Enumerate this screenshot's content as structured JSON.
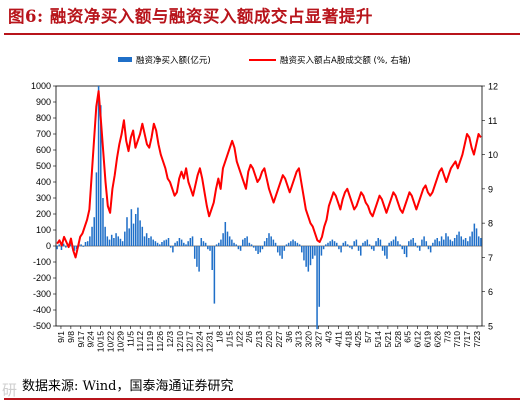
{
  "figure": {
    "title": "图6:  融资净买入额与融资买入额成交占显著提升",
    "source": "数据来源:  Wind，国泰海通证券研究",
    "watermark": "研"
  },
  "chart_data": {
    "type": "bar+line",
    "title": "",
    "xlabel": "",
    "ylabel_left": "",
    "ylabel_right": "",
    "left_axis": {
      "min": -500,
      "max": 1000,
      "step": 100,
      "ticks": [
        "-500",
        "-400",
        "-300",
        "-200",
        "-100",
        "0",
        "100",
        "200",
        "300",
        "400",
        "500",
        "600",
        "700",
        "800",
        "900",
        "1000"
      ]
    },
    "right_axis": {
      "min": 5,
      "max": 12,
      "step": 1,
      "ticks": [
        "5",
        "6",
        "7",
        "8",
        "9",
        "10",
        "11",
        "12"
      ]
    },
    "x_tick_labels": [
      "9/1",
      "9/8",
      "9/17",
      "9/24",
      "10/15",
      "10/22",
      "10/29",
      "11/5",
      "11/12",
      "11/19",
      "11/26",
      "12/3",
      "12/10",
      "12/17",
      "12/24",
      "12/31",
      "1/8",
      "1/15",
      "1/22",
      "2/6",
      "2/13",
      "2/20",
      "2/27",
      "3/6",
      "3/13",
      "3/20",
      "3/27",
      "4/3",
      "4/11",
      "4/18",
      "4/25",
      "5/7",
      "5/14",
      "5/21",
      "5/28",
      "6/5",
      "6/12",
      "6/19",
      "6/26",
      "7/3",
      "7/10",
      "7/17",
      "7/23"
    ],
    "x_tick_interval": 5,
    "legend": {
      "placement": "top",
      "entries": [
        {
          "name": "融资净买入额(亿元)",
          "type": "bar",
          "color": "#1f6fc8"
        },
        {
          "name": "融资买入额占A股成交额 (%, 右轴)",
          "type": "line",
          "color": "#ff0000"
        }
      ]
    },
    "series": [
      {
        "name": "融资净买入额(亿元)",
        "axis": "left",
        "type": "bar",
        "color": "#1f6fc8",
        "values": [
          -20,
          10,
          -25,
          15,
          -10,
          5,
          20,
          -15,
          -30,
          -20,
          15,
          10,
          -5,
          25,
          30,
          60,
          120,
          180,
          460,
          1000,
          880,
          300,
          120,
          60,
          40,
          70,
          50,
          80,
          60,
          45,
          30,
          90,
          180,
          110,
          230,
          140,
          200,
          240,
          160,
          120,
          60,
          80,
          50,
          60,
          40,
          30,
          20,
          10,
          25,
          35,
          40,
          50,
          -10,
          -40,
          20,
          30,
          50,
          40,
          20,
          10,
          30,
          50,
          60,
          -80,
          -130,
          -160,
          50,
          30,
          20,
          -20,
          -30,
          -150,
          -360,
          10,
          20,
          40,
          80,
          150,
          90,
          60,
          40,
          20,
          10,
          -20,
          -30,
          40,
          50,
          60,
          20,
          10,
          -10,
          -30,
          -50,
          -40,
          -20,
          30,
          50,
          80,
          60,
          40,
          20,
          -40,
          -60,
          -80,
          -30,
          10,
          20,
          30,
          40,
          30,
          20,
          10,
          -40,
          -90,
          -130,
          -160,
          -120,
          -80,
          -60,
          -520,
          -380,
          -60,
          -20,
          10,
          20,
          30,
          40,
          30,
          20,
          -20,
          -40,
          20,
          30,
          10,
          -10,
          -20,
          30,
          40,
          -30,
          -60,
          20,
          30,
          40,
          10,
          -20,
          -30,
          30,
          50,
          40,
          -30,
          -60,
          -80,
          20,
          30,
          40,
          60,
          30,
          10,
          -20,
          -50,
          -70,
          30,
          40,
          50,
          20,
          -10,
          -30,
          40,
          60,
          30,
          -20,
          -40,
          20,
          40,
          50,
          30,
          60,
          40,
          80,
          60,
          40,
          30,
          50,
          70,
          90,
          60,
          40,
          50,
          30,
          60,
          90,
          140,
          110,
          60,
          50
        ]
      },
      {
        "name": "融资买入额占A股成交额 (%, 右轴)",
        "axis": "right",
        "type": "line",
        "color": "#ff0000",
        "values": [
          7.4,
          7.5,
          7.35,
          7.6,
          7.45,
          7.3,
          7.55,
          7.2,
          7.0,
          7.3,
          7.6,
          7.7,
          7.9,
          8.1,
          8.4,
          9.4,
          10.4,
          11.4,
          11.85,
          11.0,
          10.1,
          9.2,
          8.5,
          8.3,
          9.0,
          9.4,
          9.9,
          10.3,
          10.6,
          11.0,
          10.4,
          10.1,
          10.5,
          10.7,
          10.2,
          10.4,
          10.6,
          10.9,
          10.6,
          10.3,
          10.2,
          10.5,
          10.9,
          10.7,
          10.3,
          10.0,
          9.8,
          9.6,
          9.3,
          9.2,
          9.0,
          8.8,
          8.9,
          9.3,
          9.5,
          9.3,
          9.6,
          9.2,
          9.0,
          8.8,
          9.1,
          9.4,
          9.6,
          9.3,
          8.9,
          8.5,
          8.2,
          8.4,
          8.6,
          9.0,
          9.3,
          9.0,
          9.6,
          9.8,
          10.0,
          10.2,
          10.4,
          10.2,
          9.8,
          9.6,
          9.4,
          9.2,
          9.0,
          9.5,
          9.7,
          9.6,
          9.4,
          9.2,
          9.3,
          9.5,
          9.6,
          9.3,
          9.0,
          8.8,
          8.6,
          8.8,
          9.0,
          9.2,
          9.4,
          9.3,
          9.1,
          8.9,
          9.1,
          9.3,
          9.5,
          9.6,
          9.2,
          8.8,
          8.4,
          8.2,
          8.0,
          7.9,
          7.7,
          7.5,
          7.45,
          7.6,
          7.9,
          8.1,
          8.5,
          8.7,
          8.9,
          8.8,
          8.6,
          8.4,
          8.7,
          8.9,
          9.0,
          8.8,
          8.6,
          8.4,
          8.5,
          8.7,
          8.9,
          8.8,
          8.6,
          8.5,
          8.3,
          8.2,
          8.4,
          8.6,
          8.8,
          8.7,
          8.5,
          8.3,
          8.5,
          8.7,
          8.9,
          8.8,
          8.6,
          8.4,
          8.3,
          8.5,
          8.7,
          8.9,
          8.8,
          8.6,
          8.4,
          8.6,
          8.8,
          9.0,
          9.1,
          8.9,
          8.8,
          8.9,
          9.1,
          9.3,
          9.5,
          9.6,
          9.4,
          9.2,
          9.4,
          9.6,
          9.7,
          9.8,
          9.6,
          9.8,
          10.0,
          10.3,
          10.6,
          10.5,
          10.2,
          10.0,
          10.3,
          10.6,
          10.5
        ]
      }
    ]
  }
}
